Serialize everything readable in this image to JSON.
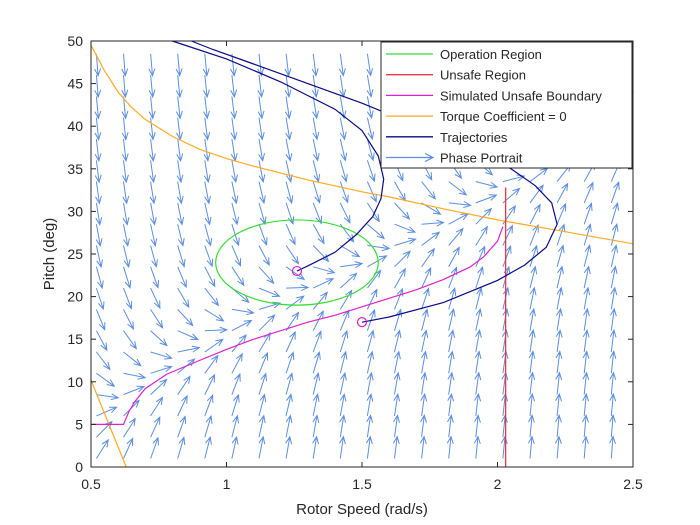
{
  "chart_data": {
    "type": "line",
    "xlabel": "Rotor Speed (rad/s)",
    "ylabel": "Pitch (deg)",
    "xlim": [
      0.5,
      2.5
    ],
    "ylim": [
      0,
      50
    ],
    "xticks": [
      0.5,
      1,
      1.5,
      2,
      2.5
    ],
    "xtick_labels": [
      "0.5",
      "1",
      "1.5",
      "2",
      "2.5"
    ],
    "yticks": [
      0,
      5,
      10,
      15,
      20,
      25,
      30,
      35,
      40,
      45,
      50
    ],
    "ytick_labels": [
      "0",
      "5",
      "10",
      "15",
      "20",
      "25",
      "30",
      "35",
      "40",
      "45",
      "50"
    ],
    "grid": false,
    "legend_position": "top-right",
    "legend": [
      {
        "label": "Operation Region",
        "color": "#33dd33",
        "style": "line"
      },
      {
        "label": "Unsafe Region",
        "color": "#ee3344",
        "style": "line"
      },
      {
        "label": "Simulated Unsafe Boundary",
        "color": "#dd22cc",
        "style": "line"
      },
      {
        "label": "Torque Coefficient = 0",
        "color": "#ffaa22",
        "style": "line"
      },
      {
        "label": "Trajectories",
        "color": "#0a0a88",
        "style": "line"
      },
      {
        "label": "Phase Portrait",
        "color": "#5b8fe0",
        "style": "arrow"
      }
    ],
    "operation_region": {
      "center_x": 1.26,
      "center_y": 24,
      "radius_x": 0.3,
      "radius_y": 5
    },
    "unsafe_region": {
      "x": 2.03
    },
    "simulated_unsafe_boundary": {
      "x": [
        0.5,
        0.6,
        0.62,
        0.64,
        0.66,
        0.7,
        0.78,
        0.9,
        1.0,
        1.1,
        1.2,
        1.3,
        1.4,
        1.5,
        1.6,
        1.7,
        1.8,
        1.9,
        1.95,
        2.0,
        2.02
      ],
      "y": [
        5,
        5,
        5,
        6.5,
        7.6,
        9.2,
        10.9,
        12.5,
        13.8,
        15.0,
        16.0,
        17.0,
        17.8,
        18.8,
        19.8,
        20.8,
        22.0,
        23.5,
        24.7,
        26.5,
        28.2
      ]
    },
    "torque_coefficient_zero": [
      {
        "x": [
          0.5,
          0.55,
          0.6,
          0.65,
          0.7,
          0.8,
          0.9,
          1.0,
          1.1,
          1.2,
          1.3,
          1.4,
          1.5,
          1.6,
          1.8,
          2.0,
          2.2,
          2.5
        ],
        "y": [
          49.5,
          46.5,
          44.0,
          42.2,
          40.8,
          38.8,
          37.3,
          36.2,
          35.3,
          34.5,
          33.7,
          33.0,
          32.3,
          31.7,
          30.3,
          29.0,
          27.9,
          26.2
        ]
      },
      {
        "x": [
          0.5,
          0.63
        ],
        "y": [
          10.2,
          0
        ]
      }
    ],
    "trajectories": [
      {
        "x": [
          1.26,
          1.3,
          1.4,
          1.48,
          1.54,
          1.57,
          1.58,
          1.56,
          1.5,
          1.4,
          1.2,
          1.0,
          0.8
        ],
        "y": [
          23,
          23.6,
          25.2,
          27.3,
          29.4,
          31.5,
          33.8,
          36.5,
          39.5,
          42.0,
          45.2,
          47.9,
          50
        ]
      },
      {
        "x": [
          1.5,
          1.6,
          1.8,
          2.0,
          2.1,
          2.18,
          2.22,
          2.2,
          2.14,
          2.05,
          1.9,
          1.7,
          1.5,
          1.3,
          1.1,
          0.95,
          0.87
        ],
        "y": [
          17,
          17.6,
          19.3,
          21.9,
          23.7,
          25.8,
          28.5,
          31.0,
          33.0,
          35.0,
          37.5,
          40.1,
          42.7,
          45.0,
          47.3,
          49.0,
          50
        ]
      }
    ],
    "trajectory_start_markers": [
      {
        "x": 1.26,
        "y": 23
      },
      {
        "x": 1.5,
        "y": 17
      }
    ],
    "phase_portrait": {
      "x_samples": [
        0.52,
        0.62,
        0.72,
        0.82,
        0.92,
        1.02,
        1.12,
        1.22,
        1.32,
        1.42,
        1.52,
        1.62,
        1.72,
        1.82,
        1.92,
        2.02,
        2.12,
        2.22,
        2.32,
        2.42
      ],
      "y_samples": [
        1,
        3.5,
        6,
        8.5,
        11,
        13.5,
        16,
        18.5,
        21,
        23.5,
        26,
        28.5,
        31,
        33.5,
        36,
        38.5,
        41,
        43.5,
        46,
        48.5
      ]
    },
    "colors": {
      "phase_arrows": "#5b8fe0",
      "operation_region": "#33dd33",
      "unsafe_region": "#ee3344",
      "unsafe_boundary": "#dd22cc",
      "torque_zero": "#ffaa22",
      "trajectories": "#0a0a88",
      "axes": "#262626"
    }
  }
}
